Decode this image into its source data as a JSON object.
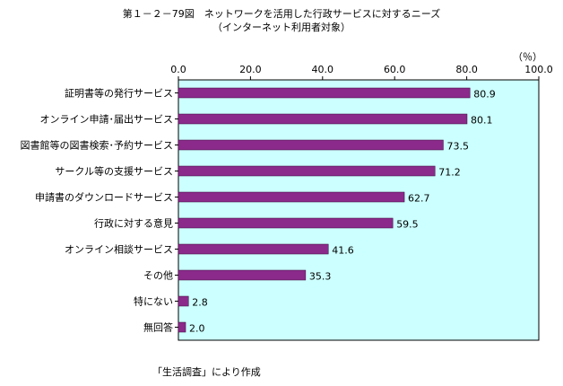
{
  "title": "第１－２－79図　ネットワークを活用した行政サービスに対するニーズ",
  "subtitle": "（インターネット利用者対象）",
  "unit": "（％）",
  "source": "「生活調査」により作成",
  "chart_data": {
    "type": "bar",
    "orientation": "horizontal",
    "categories": [
      "証明書等の発行サービス",
      "オンライン申請･届出サービス",
      "図書館等の図書検索･予約サービス",
      "サークル等の支援サービス",
      "申請書のダウンロードサービス",
      "行政に対する意見",
      "オンライン相談サービス",
      "その他",
      "特にない",
      "無回答"
    ],
    "values": [
      80.9,
      80.1,
      73.5,
      71.2,
      62.7,
      59.5,
      41.6,
      35.3,
      2.8,
      2.0
    ],
    "value_labels": [
      "80.9",
      "80.1",
      "73.5",
      "71.2",
      "62.7",
      "59.5",
      "41.6",
      "35.3",
      "2.8",
      "2.0"
    ],
    "xlim": [
      0,
      100
    ],
    "xticks": [
      "0.0",
      "20.0",
      "40.0",
      "60.0",
      "80.0",
      "100.0"
    ],
    "xtick_values": [
      0,
      20,
      40,
      60,
      80,
      100
    ],
    "bar_color": "#8b2a8b",
    "plot_background": "#ccffff",
    "grid": false,
    "legend": "none"
  }
}
